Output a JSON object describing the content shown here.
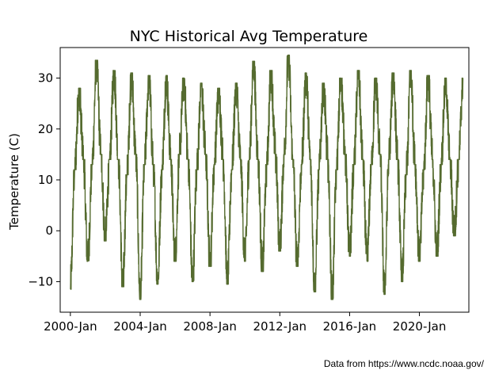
{
  "chart_data": {
    "type": "line",
    "title": "NYC Historical Avg Temperature",
    "xlabel": "",
    "ylabel": "Temperature (C)",
    "xlim": [
      "1999-06",
      "2022-11"
    ],
    "ylim": [
      -16,
      36
    ],
    "x_ticks": [
      "2000-Jan",
      "2004-Jan",
      "2008-Jan",
      "2012-Jan",
      "2016-Jan",
      "2020-Jan"
    ],
    "y_ticks": [
      -10,
      0,
      10,
      20,
      30
    ],
    "grid": false,
    "legend": "none",
    "series": [
      {
        "color": "#556b2f",
        "x": [
          "2000-01",
          "2000-04",
          "2000-07",
          "2000-10",
          "2001-01",
          "2001-04",
          "2001-07",
          "2001-10",
          "2002-01",
          "2002-04",
          "2002-07",
          "2002-10",
          "2003-01",
          "2003-04",
          "2003-07",
          "2003-10",
          "2004-01",
          "2004-04",
          "2004-07",
          "2004-10",
          "2005-01",
          "2005-04",
          "2005-07",
          "2005-10",
          "2006-01",
          "2006-04",
          "2006-07",
          "2006-10",
          "2007-01",
          "2007-04",
          "2007-07",
          "2007-10",
          "2008-01",
          "2008-04",
          "2008-07",
          "2008-10",
          "2009-01",
          "2009-04",
          "2009-07",
          "2009-10",
          "2010-01",
          "2010-04",
          "2010-07",
          "2010-10",
          "2011-01",
          "2011-04",
          "2011-07",
          "2011-10",
          "2012-01",
          "2012-04",
          "2012-07",
          "2012-10",
          "2013-01",
          "2013-04",
          "2013-07",
          "2013-10",
          "2014-01",
          "2014-04",
          "2014-07",
          "2014-10",
          "2015-01",
          "2015-04",
          "2015-07",
          "2015-10",
          "2016-01",
          "2016-04",
          "2016-07",
          "2016-10",
          "2017-01",
          "2017-04",
          "2017-07",
          "2017-10",
          "2018-01",
          "2018-04",
          "2018-07",
          "2018-10",
          "2019-01",
          "2019-04",
          "2019-07",
          "2019-10",
          "2020-01",
          "2020-04",
          "2020-07",
          "2020-10",
          "2021-01",
          "2021-04",
          "2021-07",
          "2021-10",
          "2022-01",
          "2022-04",
          "2022-07"
        ],
        "values": [
          -11.5,
          12,
          28,
          14,
          -6,
          13,
          33.5,
          15,
          -2,
          14,
          31.5,
          14,
          -11,
          11,
          31,
          15,
          -13.5,
          13,
          30.5,
          13,
          -10.5,
          12,
          30.5,
          14,
          -6,
          15,
          30,
          14,
          -10,
          12,
          29,
          15,
          -7,
          13,
          28,
          14,
          -10.5,
          12,
          29,
          14,
          -6,
          14,
          33.3,
          14,
          -8,
          13,
          31.5,
          15,
          -4,
          15,
          34.5,
          14,
          -7,
          13,
          31,
          14,
          -12,
          12,
          29,
          14,
          -13.5,
          12,
          30,
          15,
          -5,
          13,
          31.5,
          14,
          -6,
          13,
          30,
          15,
          -12.5,
          14,
          31,
          14,
          -10,
          11,
          31.5,
          13,
          -6,
          12,
          30.5,
          14,
          -5,
          13,
          30,
          14,
          -1,
          14,
          30
        ]
      }
    ]
  },
  "source_note": "Data from https://www.ncdc.noaa.gov/"
}
